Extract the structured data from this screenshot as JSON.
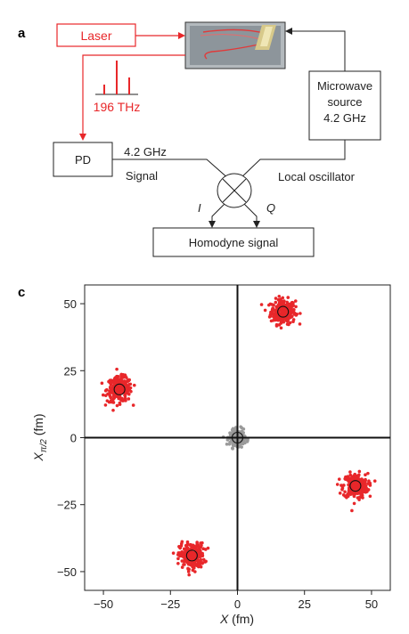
{
  "panel_a": {
    "letter": "a",
    "laser": "Laser",
    "frequency": "196 THz",
    "pd": "PD",
    "microwave_line1": "Microwave",
    "microwave_line2": "source",
    "microwave_line3": "4.2 GHz",
    "signal_freq": "4.2 GHz",
    "signal": "Signal",
    "local_oscillator": "Local oscillator",
    "i_label": "I",
    "q_label": "Q",
    "homodyne": "Homodyne signal"
  },
  "panel_c": {
    "letter": "c",
    "ylabel_main": "X",
    "ylabel_sub": "π/2",
    "ylabel_unit": " (fm)",
    "xlabel_main": "X",
    "xlabel_unit": " (fm)"
  },
  "colors": {
    "red": "#e8272a",
    "gray": "#9a9a9a",
    "dark": "#222222"
  },
  "chart_data": {
    "type": "scatter",
    "xlim": [
      -57,
      57
    ],
    "ylim": [
      -57,
      57
    ],
    "xticks": [
      -50,
      -25,
      0,
      25,
      50
    ],
    "yticks": [
      -50,
      -25,
      0,
      25,
      50
    ],
    "xtick_labels": [
      "−50",
      "−25",
      "0",
      "25",
      "50"
    ],
    "ytick_labels": [
      "−50",
      "−25",
      "0",
      "25",
      "50"
    ],
    "series": [
      {
        "color": "#e8272a",
        "clusters": [
          {
            "x": 17,
            "y": 47
          },
          {
            "x": -44,
            "y": 18
          },
          {
            "x": 44,
            "y": -18
          },
          {
            "x": -17,
            "y": -44
          }
        ],
        "spread": 2.3
      },
      {
        "color": "#9a9a9a",
        "clusters": [
          {
            "x": 0,
            "y": 0
          }
        ],
        "spread": 1.4
      }
    ]
  }
}
